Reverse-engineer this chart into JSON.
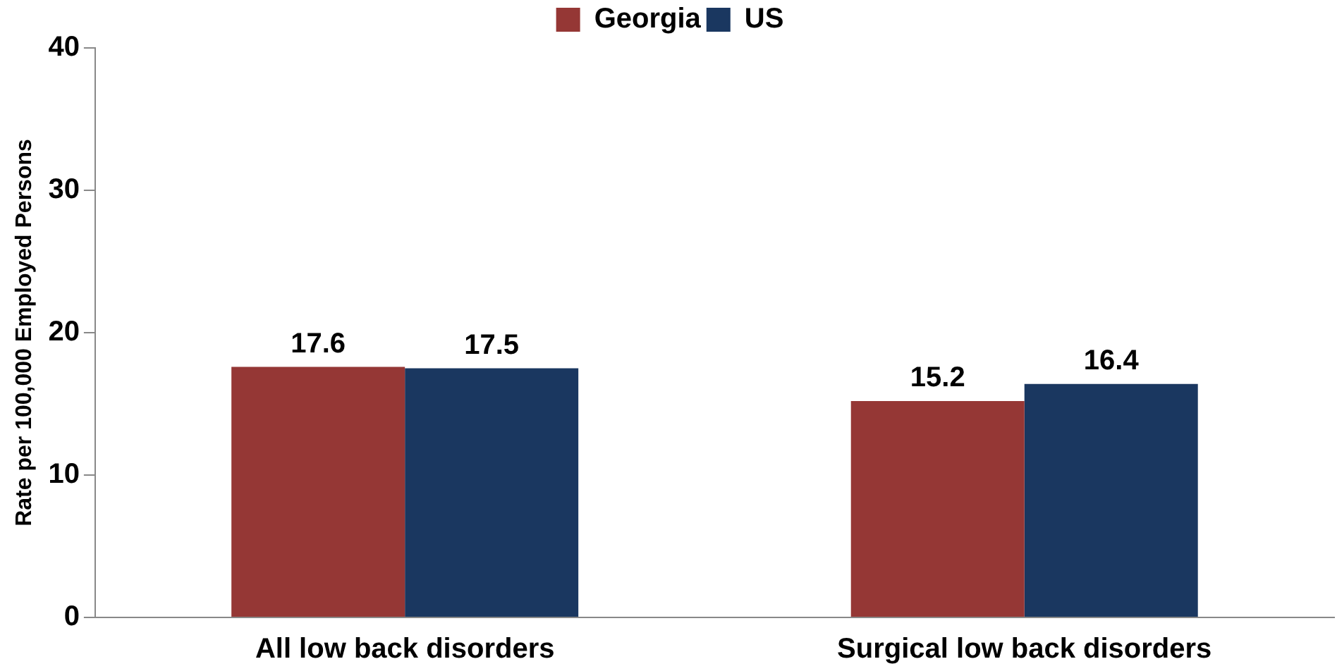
{
  "chart_data": {
    "type": "bar",
    "ylabel": "Rate per 100,000 Employed Persons",
    "categories": [
      "All low back disorders",
      "Surgical low back disorders"
    ],
    "series": [
      {
        "name": "Georgia",
        "color": "#953735",
        "values": [
          17.6,
          15.2
        ]
      },
      {
        "name": "US",
        "color": "#1a3760",
        "values": [
          17.5,
          16.4
        ]
      }
    ],
    "ylim": [
      0,
      40
    ],
    "yticks": [
      0,
      10,
      20,
      30,
      40
    ],
    "grid": false,
    "legend": "top",
    "data_labels": true
  }
}
